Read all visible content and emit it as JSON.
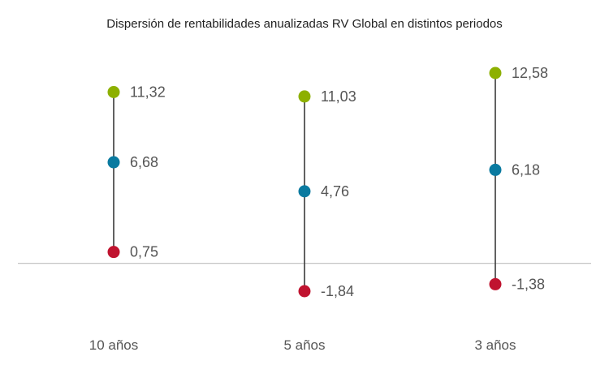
{
  "chart_data": {
    "type": "range-dot",
    "title": "Dispersión de rentabilidades anualizadas RV Global en distintos periodos",
    "xlabel": "",
    "ylabel": "",
    "categories": [
      "10 años",
      "5 años",
      "3 años"
    ],
    "series": [
      {
        "key": "max",
        "color": "#8db000",
        "values": [
          11.32,
          11.03,
          12.58
        ],
        "labels": [
          "11,32",
          "11,03",
          "12,58"
        ]
      },
      {
        "key": "mid",
        "color": "#0a7aa0",
        "values": [
          6.68,
          4.76,
          6.18
        ],
        "labels": [
          "6,68",
          "4,76",
          "6,18"
        ]
      },
      {
        "key": "min",
        "color": "#c0132f",
        "values": [
          0.75,
          -1.84,
          -1.38
        ],
        "labels": [
          "0,75",
          "-1,84",
          "-1,38"
        ]
      }
    ],
    "ylim": [
      -2.5,
      13.5
    ],
    "grid": false,
    "zero_line": true,
    "colors": {
      "connector": "#3a3a3a",
      "zero_line": "#bdbdbd"
    }
  }
}
